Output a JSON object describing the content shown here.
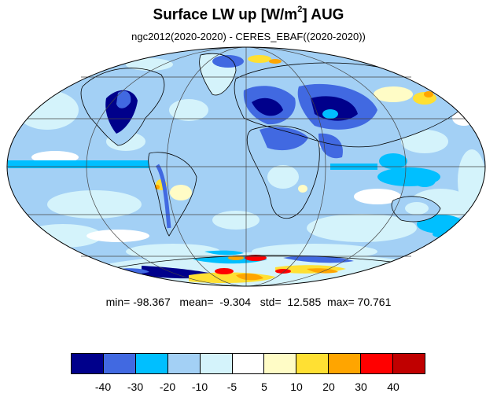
{
  "title_main": "Surface LW up [W/m",
  "title_sup": "2",
  "title_tail": "]  AUG",
  "subtitle": "ngc2012(2020-2020) - CERES_EBAF((2020-2020))",
  "stats": {
    "min_label": "min=",
    "min": "-98.367",
    "mean_label": "mean=",
    "mean": "-9.304",
    "std_label": "std=",
    "std": "12.585",
    "max_label": "max=",
    "max": "70.761"
  },
  "colorbar": {
    "colors": [
      "#00008b",
      "#4169e1",
      "#00bfff",
      "#a3d0f5",
      "#d4f3fb",
      "#ffffff",
      "#fffcc6",
      "#ffe033",
      "#ffa500",
      "#ff0000",
      "#c00000"
    ],
    "labels": [
      "-40",
      "-30",
      "-20",
      "-10",
      "-5",
      "5",
      "10",
      "20",
      "30",
      "40"
    ]
  },
  "map": {
    "projection": "Mollweide",
    "ocean_color": "#a3d0f5",
    "grid": true
  }
}
